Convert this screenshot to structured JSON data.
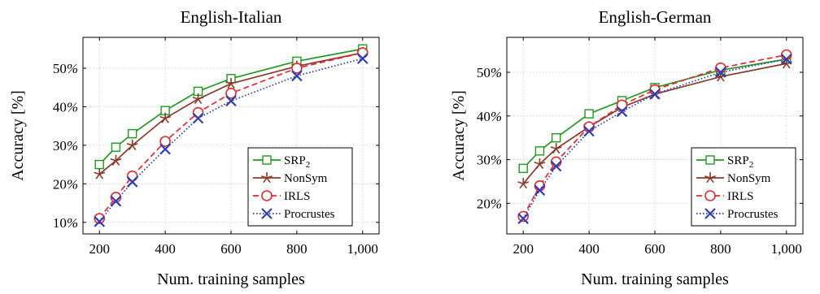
{
  "chart_data": [
    {
      "type": "line",
      "title": "English-Italian",
      "xlabel": "Num. training samples",
      "ylabel": "Accuracy [%]",
      "x": [
        200,
        250,
        300,
        400,
        500,
        600,
        800,
        1000
      ],
      "xticks": [
        200,
        400,
        600,
        800,
        1000
      ],
      "xtick_labels": [
        "200",
        "400",
        "600",
        "800",
        "1,000"
      ],
      "yticks": [
        10,
        20,
        30,
        40,
        50
      ],
      "ytick_labels": [
        "10%",
        "20%",
        "30%",
        "40%",
        "50%"
      ],
      "xlim": [
        150,
        1050
      ],
      "ylim": [
        7,
        58
      ],
      "grid": true,
      "legend_position": "bottom-right",
      "series": [
        {
          "name": "SRP",
          "sub": "2",
          "color": "#1f9a1f",
          "marker": "square",
          "dash": "solid",
          "values": [
            25.0,
            29.5,
            33.0,
            39.0,
            44.0,
            47.3,
            51.8,
            55.0
          ]
        },
        {
          "name": "NonSym",
          "color": "#8b3a2a",
          "marker": "star",
          "dash": "solid",
          "values": [
            22.5,
            26.0,
            30.0,
            37.0,
            42.0,
            46.0,
            50.5,
            54.0
          ]
        },
        {
          "name": "IRLS",
          "color": "#e8262e",
          "marker": "circle",
          "dash": "dashed",
          "values": [
            11.0,
            16.5,
            22.0,
            31.0,
            38.5,
            43.5,
            50.0,
            54.0
          ]
        },
        {
          "name": "Procrustes",
          "color": "#2e3fb5",
          "marker": "x",
          "dash": "dotted",
          "values": [
            10.2,
            15.5,
            20.5,
            29.0,
            37.0,
            41.5,
            48.0,
            52.5
          ]
        }
      ]
    },
    {
      "type": "line",
      "title": "English-German",
      "xlabel": "Num. training samples",
      "ylabel": "Accuracy [%]",
      "x": [
        200,
        250,
        300,
        400,
        500,
        600,
        800,
        1000
      ],
      "xticks": [
        200,
        400,
        600,
        800,
        1000
      ],
      "xtick_labels": [
        "200",
        "400",
        "600",
        "800",
        "1,000"
      ],
      "yticks": [
        20,
        30,
        40,
        50
      ],
      "ytick_labels": [
        "20%",
        "30%",
        "40%",
        "50%"
      ],
      "xlim": [
        150,
        1050
      ],
      "ylim": [
        13,
        58
      ],
      "grid": true,
      "legend_position": "bottom-right",
      "series": [
        {
          "name": "SRP",
          "sub": "2",
          "color": "#1f9a1f",
          "marker": "square",
          "dash": "solid",
          "values": [
            28.0,
            32.0,
            35.0,
            40.5,
            43.5,
            46.5,
            50.5,
            53.0
          ]
        },
        {
          "name": "NonSym",
          "color": "#8b3a2a",
          "marker": "star",
          "dash": "solid",
          "values": [
            24.5,
            29.0,
            32.5,
            37.5,
            42.0,
            45.0,
            49.0,
            52.0
          ]
        },
        {
          "name": "IRLS",
          "color": "#e8262e",
          "marker": "circle",
          "dash": "dashed",
          "values": [
            17.0,
            24.0,
            29.5,
            37.5,
            42.5,
            46.0,
            51.0,
            54.0
          ]
        },
        {
          "name": "Procrustes",
          "color": "#2e3fb5",
          "marker": "x",
          "dash": "dotted",
          "values": [
            16.5,
            23.0,
            28.5,
            36.5,
            41.0,
            45.0,
            50.0,
            53.0
          ]
        }
      ]
    }
  ]
}
